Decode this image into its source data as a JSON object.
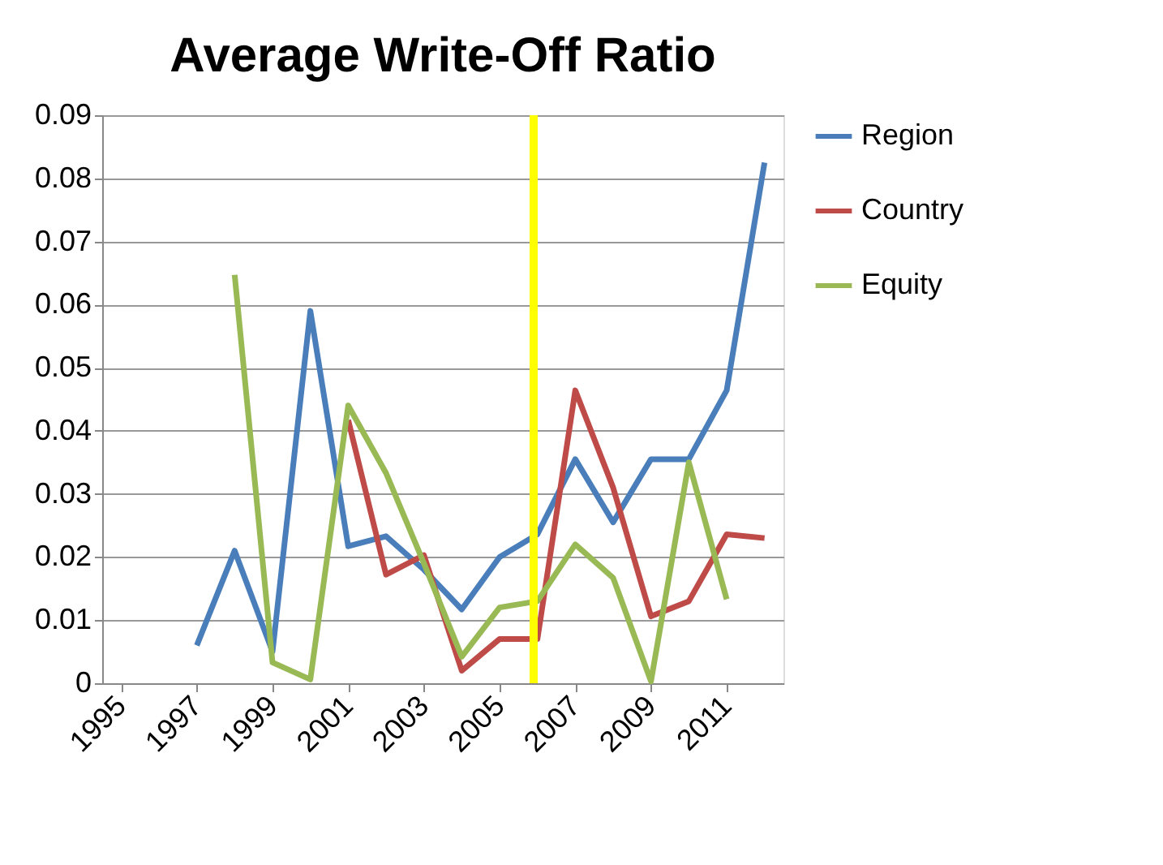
{
  "chart_data": {
    "type": "line",
    "title": "Average Write-Off Ratio",
    "series": [
      {
        "name": "Region",
        "color": "#4a7ebb",
        "x": [
          1997,
          1998,
          1999,
          2000,
          2001,
          2002,
          2003,
          2004,
          2005,
          2006,
          2007,
          2008,
          2009,
          2010,
          2011,
          2012
        ],
        "values": [
          0.006,
          0.021,
          0.005,
          0.059,
          0.0217,
          0.0233,
          0.018,
          0.0117,
          0.02,
          0.0236,
          0.0355,
          0.0255,
          0.0355,
          0.0355,
          0.0464,
          0.0825
        ]
      },
      {
        "name": "Country",
        "color": "#be4b48",
        "x": [
          2001,
          2002,
          2003,
          2004,
          2005,
          2006,
          2007,
          2008,
          2009,
          2010,
          2011,
          2012
        ],
        "values": [
          0.0417,
          0.0172,
          0.0203,
          0.002,
          0.007,
          0.007,
          0.0464,
          0.031,
          0.0106,
          0.013,
          0.0236,
          0.023
        ]
      },
      {
        "name": "Equity",
        "color": "#98b954",
        "x": [
          1998,
          1999,
          2000,
          2001,
          2002,
          2003,
          2004,
          2005,
          2006,
          2007,
          2008,
          2009,
          2010,
          2011
        ],
        "values": [
          0.0647,
          0.0033,
          0.0006,
          0.044,
          0.0333,
          0.019,
          0.0042,
          0.012,
          0.013,
          0.022,
          0.0167,
          0.0003,
          0.035,
          0.0133
        ]
      }
    ],
    "xlim": [
      1994.5,
      2012.5
    ],
    "xticks": [
      1995,
      1997,
      1999,
      2001,
      2003,
      2005,
      2007,
      2009,
      2011
    ],
    "ylim": [
      0,
      0.09
    ],
    "yticks": [
      0,
      0.01,
      0.02,
      0.03,
      0.04,
      0.05,
      0.06,
      0.07,
      0.08,
      0.09
    ],
    "ref_lines": [
      {
        "axis": "x",
        "value": 2005.9,
        "color": "#ffff00"
      }
    ],
    "grid": "y",
    "legend": "right",
    "marker": "none",
    "line_style": "solid"
  }
}
